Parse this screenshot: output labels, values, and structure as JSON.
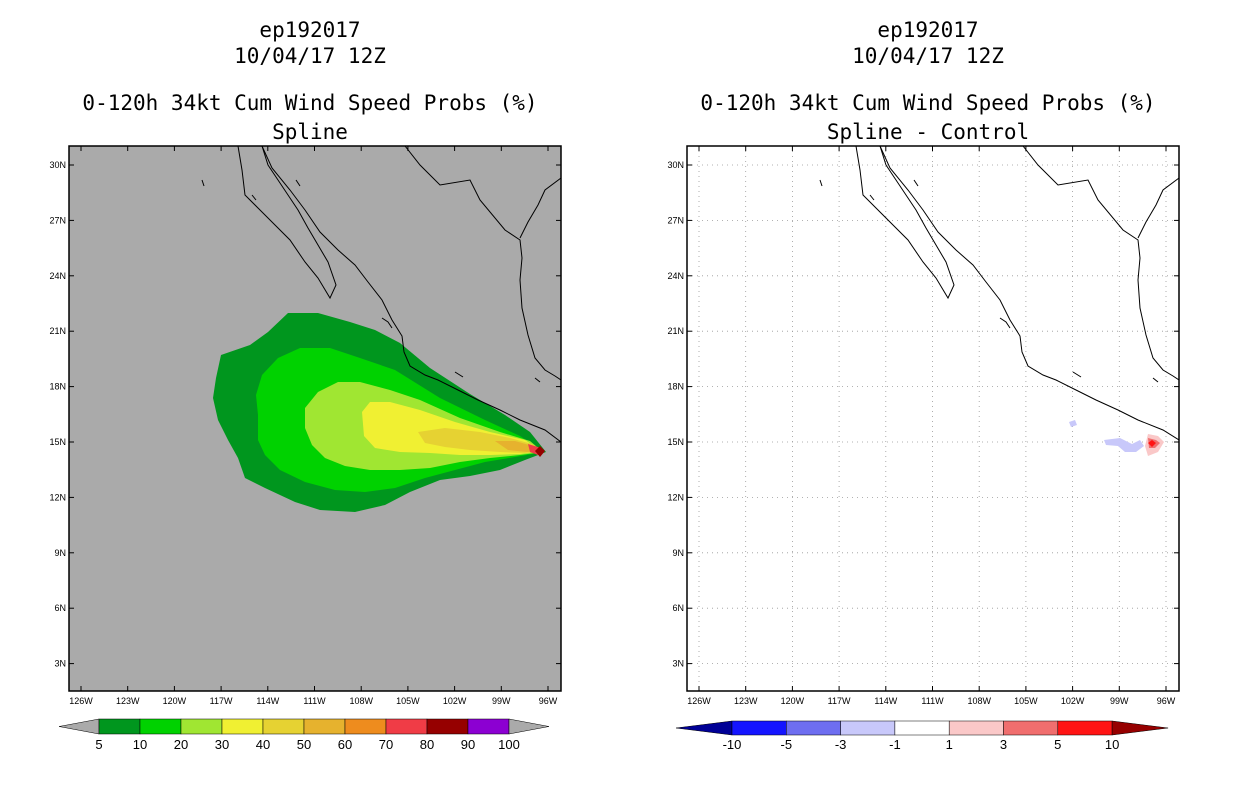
{
  "left": {
    "title1": "ep192017",
    "title2": "10/04/17 12Z",
    "title3": "0-120h 34kt Cum Wind Speed Probs (%)",
    "subtitle": "Spline",
    "background_color": "#aaaaaa",
    "colorbar": {
      "colors": [
        "#00961e",
        "#00d200",
        "#a0e632",
        "#f0f032",
        "#e6d232",
        "#e6b22e",
        "#ee8c1e",
        "#f03c46",
        "#960000",
        "#8c00d2"
      ],
      "labels": [
        "5",
        "10",
        "20",
        "30",
        "40",
        "50",
        "60",
        "70",
        "80",
        "90",
        "100"
      ],
      "extend_color": "#aaaaaa"
    }
  },
  "right": {
    "title1": "ep192017",
    "title2": "10/04/17 12Z",
    "title3": "0-120h 34kt Cum Wind Speed Probs (%)",
    "subtitle": "Spline - Control",
    "background_color": "#ffffff",
    "colorbar": {
      "colors": [
        "#1414ff",
        "#6e6ef0",
        "#c8c8fa",
        "#ffffff",
        "#fac8c8",
        "#f06e6e",
        "#ff1414"
      ],
      "labels": [
        "-10",
        "-5",
        "-3",
        "-1",
        "1",
        "3",
        "5",
        "10"
      ],
      "extend_low_color": "#000096",
      "extend_high_color": "#960000"
    }
  },
  "axes": {
    "lon_labels": [
      "126W",
      "123W",
      "120W",
      "117W",
      "114W",
      "111W",
      "108W",
      "105W",
      "102W",
      "99W",
      "96W"
    ],
    "lat_labels": [
      "30N",
      "27N",
      "24N",
      "21N",
      "18N",
      "15N",
      "12N",
      "9N",
      "6N",
      "3N"
    ],
    "lon_range": [
      -127.5,
      -95
    ],
    "lat_range": [
      1.5,
      31.5
    ]
  },
  "icons": {
    "storm": "storm-center-diamond",
    "coastline": "coastline-outline"
  }
}
